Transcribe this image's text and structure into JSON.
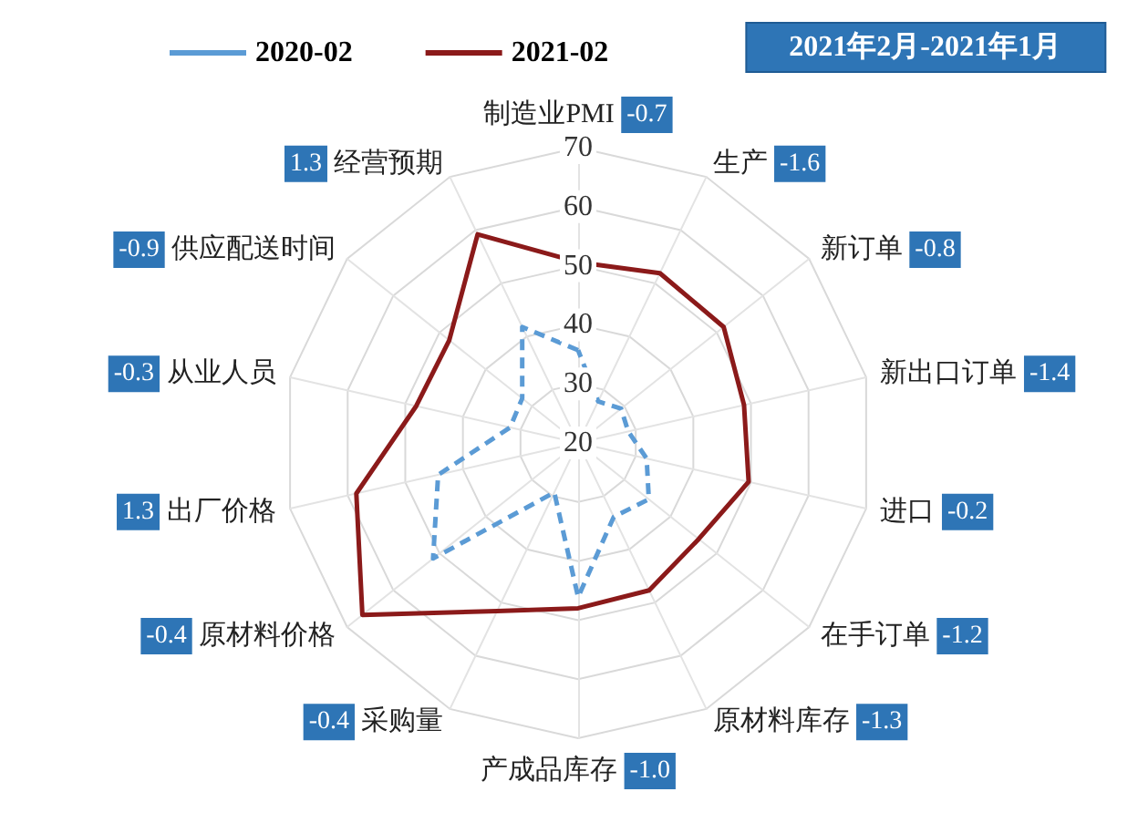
{
  "chart_data": {
    "type": "radar",
    "title": "2021年2月-2021年1月",
    "categories": [
      "制造业PMI",
      "生产",
      "新订单",
      "新出口订单",
      "进口",
      "在手订单",
      "原材料库存",
      "产成品库存",
      "采购量",
      "原材料价格",
      "出厂价格",
      "从业人员",
      "供应配送时间",
      "经营预期"
    ],
    "ylim": [
      20,
      70
    ],
    "yticks": [
      20,
      30,
      40,
      50,
      60,
      70
    ],
    "grid": true,
    "legend": "top",
    "marker": "none",
    "series": [
      {
        "name": "2020-02",
        "color": "#5b9bd5",
        "line_style": "dashed",
        "values": [
          35.7,
          27.8,
          29.3,
          28.7,
          31.9,
          35.3,
          33.9,
          46.1,
          29.3,
          51.4,
          44.3,
          31.8,
          32.1,
          41.8
        ]
      },
      {
        "name": "2021-02",
        "color": "#8b1a1a",
        "line_style": "solid",
        "values": [
          50.6,
          51.9,
          51.5,
          48.8,
          49.6,
          46.1,
          47.7,
          48.0,
          51.6,
          66.7,
          58.5,
          48.1,
          47.9,
          59.2
        ]
      }
    ],
    "annotations": [
      "-0.7",
      "-1.6",
      "-0.8",
      "-1.4",
      "-0.2",
      "-1.2",
      "-1.3",
      "-1.0",
      "-0.4",
      "-0.4",
      "1.3",
      "-0.3",
      "-0.9",
      "1.3"
    ]
  }
}
